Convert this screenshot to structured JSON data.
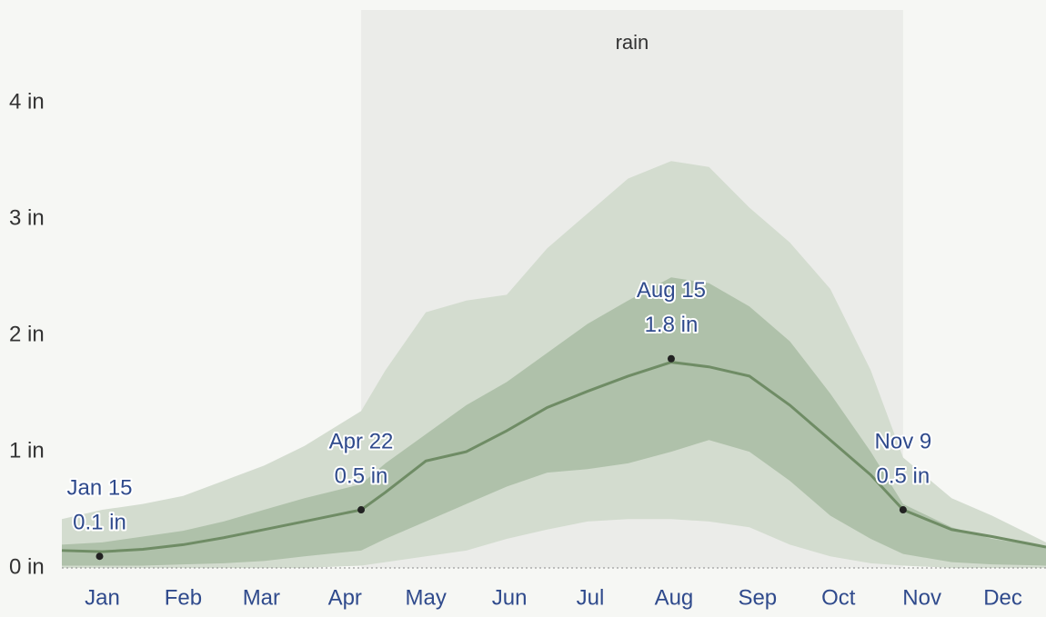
{
  "chart_data": {
    "type": "line",
    "season": {
      "label": "rain",
      "start": 111,
      "end": 312,
      "color": "rgba(0,0,0,0.045)"
    },
    "x": [
      0,
      15,
      30,
      45,
      60,
      75,
      90,
      111,
      120,
      135,
      150,
      165,
      180,
      195,
      210,
      226,
      240,
      255,
      270,
      285,
      300,
      312,
      330,
      345,
      365
    ],
    "values": [
      0.15,
      0.14,
      0.16,
      0.2,
      0.26,
      0.33,
      0.4,
      0.5,
      0.65,
      0.92,
      1.0,
      1.18,
      1.38,
      1.52,
      1.65,
      1.77,
      1.73,
      1.65,
      1.4,
      1.1,
      0.8,
      0.5,
      0.33,
      0.27,
      0.18
    ],
    "color": "#6f8c65",
    "bands": [
      {
        "color": "#d3dccf",
        "upper": [
          0.42,
          0.5,
          0.55,
          0.62,
          0.75,
          0.88,
          1.05,
          1.35,
          1.7,
          2.2,
          2.3,
          2.35,
          2.75,
          3.05,
          3.35,
          3.5,
          3.45,
          3.1,
          2.8,
          2.4,
          1.7,
          0.95,
          0.6,
          0.45,
          0.22
        ],
        "lower": [
          0,
          0,
          0,
          0,
          0,
          0,
          0,
          0.02,
          0.05,
          0.1,
          0.15,
          0.25,
          0.33,
          0.4,
          0.42,
          0.42,
          0.4,
          0.35,
          0.2,
          0.1,
          0.04,
          0.02,
          0,
          0,
          0
        ]
      },
      {
        "color": "#afc1aa",
        "upper": [
          0.2,
          0.22,
          0.27,
          0.32,
          0.4,
          0.5,
          0.6,
          0.72,
          0.9,
          1.15,
          1.4,
          1.6,
          1.85,
          2.1,
          2.3,
          2.5,
          2.45,
          2.25,
          1.95,
          1.5,
          1.0,
          0.55,
          0.35,
          0.25,
          0.18
        ],
        "lower": [
          0.02,
          0.02,
          0.02,
          0.03,
          0.04,
          0.06,
          0.1,
          0.15,
          0.25,
          0.4,
          0.55,
          0.7,
          0.82,
          0.85,
          0.9,
          1.0,
          1.1,
          1.0,
          0.75,
          0.45,
          0.25,
          0.12,
          0.05,
          0.03,
          0.02
        ]
      }
    ],
    "annotations": [
      {
        "x": 14,
        "label": "Jan 15",
        "value": 0.1,
        "value_label": "0.1 in"
      },
      {
        "x": 111,
        "label": "Apr 22",
        "value": 0.5,
        "value_label": "0.5 in"
      },
      {
        "x": 226,
        "label": "Aug 15",
        "value": 1.8,
        "value_label": "1.8 in"
      },
      {
        "x": 312,
        "label": "Nov 9",
        "value": 0.5,
        "value_label": "0.5 in"
      }
    ],
    "xlim": [
      0,
      365
    ],
    "xticks": [
      {
        "value": 15,
        "label": "Jan"
      },
      {
        "value": 45,
        "label": "Feb"
      },
      {
        "value": 74,
        "label": "Mar"
      },
      {
        "value": 105,
        "label": "Apr"
      },
      {
        "value": 135,
        "label": "May"
      },
      {
        "value": 166,
        "label": "Jun"
      },
      {
        "value": 196,
        "label": "Jul"
      },
      {
        "value": 227,
        "label": "Aug"
      },
      {
        "value": 258,
        "label": "Sep"
      },
      {
        "value": 288,
        "label": "Oct"
      },
      {
        "value": 319,
        "label": "Nov"
      },
      {
        "value": 349,
        "label": "Dec"
      }
    ],
    "ylim": [
      0,
      4.8
    ],
    "yticks": [
      {
        "value": 0,
        "label": "0 in"
      },
      {
        "value": 1,
        "label": "1 in"
      },
      {
        "value": 2,
        "label": "2 in"
      },
      {
        "value": 3,
        "label": "3 in"
      },
      {
        "value": 4,
        "label": "4 in"
      }
    ]
  }
}
